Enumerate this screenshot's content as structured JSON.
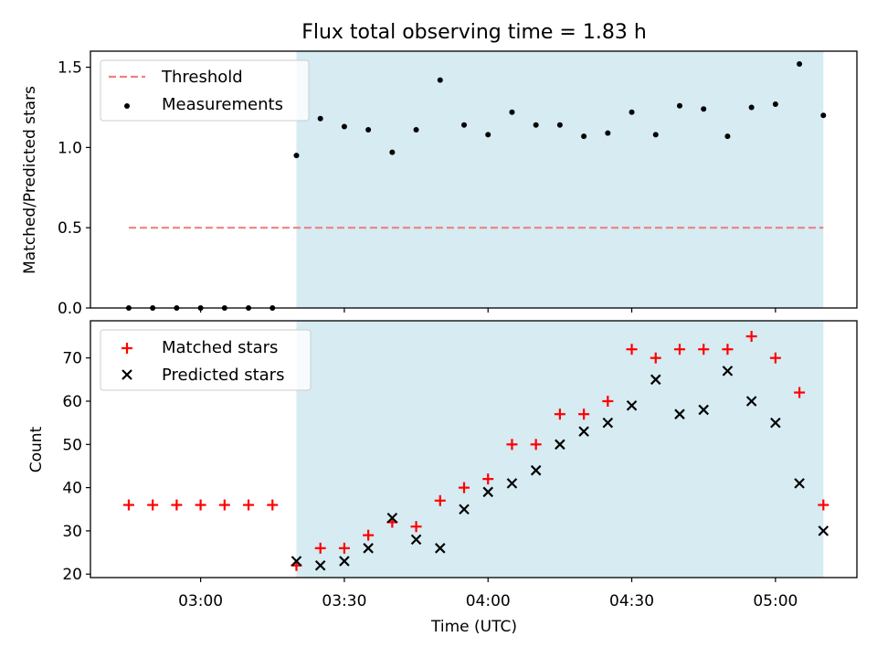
{
  "colors": {
    "shade": "#add8e6",
    "threshold": "#f08080",
    "measurement": "#000000",
    "matched": "#ff0000",
    "predicted": "#000000",
    "axis": "#000000"
  },
  "chart_data": [
    {
      "type": "scatter",
      "title": "Flux total observing time = 1.83 h",
      "xlabel": "",
      "ylabel": "Matched/Predicted stars",
      "xlim": [
        "02:37",
        "05:17"
      ],
      "ylim": [
        0,
        1.6
      ],
      "yticks": [
        0.0,
        0.5,
        1.0,
        1.5
      ],
      "ytick_labels": [
        "0.0",
        "0.5",
        "1.0",
        "1.5"
      ],
      "shaded_region": [
        "03:20",
        "05:10"
      ],
      "legend_position": "upper-left",
      "threshold": {
        "name": "Threshold",
        "value": 0.5,
        "x_range": [
          "02:45",
          "05:10"
        ],
        "style": "dashed"
      },
      "series": [
        {
          "name": "Measurements",
          "marker": "dot",
          "x": [
            "02:45",
            "02:50",
            "02:55",
            "03:00",
            "03:05",
            "03:10",
            "03:15",
            "03:20",
            "03:25",
            "03:30",
            "03:35",
            "03:40",
            "03:45",
            "03:50",
            "03:55",
            "04:00",
            "04:05",
            "04:10",
            "04:15",
            "04:20",
            "04:25",
            "04:30",
            "04:35",
            "04:40",
            "04:45",
            "04:50",
            "04:55",
            "05:00",
            "05:05",
            "05:10"
          ],
          "y": [
            0,
            0,
            0,
            0,
            0,
            0,
            0,
            0.95,
            1.18,
            1.13,
            1.11,
            0.97,
            1.11,
            1.42,
            1.14,
            1.08,
            1.22,
            1.14,
            1.14,
            1.07,
            1.09,
            1.22,
            1.08,
            1.26,
            1.24,
            1.07,
            1.25,
            1.27,
            1.52,
            1.2
          ]
        }
      ]
    },
    {
      "type": "scatter",
      "xlabel": "Time (UTC)",
      "ylabel": "Count",
      "xlim": [
        "02:37",
        "05:17"
      ],
      "ylim": [
        19.2,
        78.6
      ],
      "xticks": [
        "03:00",
        "03:30",
        "04:00",
        "04:30",
        "05:00"
      ],
      "yticks": [
        20,
        30,
        40,
        50,
        60,
        70
      ],
      "ytick_labels": [
        "20",
        "30",
        "40",
        "50",
        "60",
        "70"
      ],
      "shaded_region": [
        "03:20",
        "05:10"
      ],
      "legend_position": "upper-left",
      "series": [
        {
          "name": "Matched stars",
          "marker": "plus",
          "x": [
            "02:45",
            "02:50",
            "02:55",
            "03:00",
            "03:05",
            "03:10",
            "03:15",
            "03:20",
            "03:25",
            "03:30",
            "03:35",
            "03:40",
            "03:45",
            "03:50",
            "03:55",
            "04:00",
            "04:05",
            "04:10",
            "04:15",
            "04:20",
            "04:25",
            "04:30",
            "04:35",
            "04:40",
            "04:45",
            "04:50",
            "04:55",
            "05:00",
            "05:05",
            "05:10"
          ],
          "y": [
            36,
            36,
            36,
            36,
            36,
            36,
            36,
            22,
            26,
            26,
            29,
            32,
            31,
            37,
            40,
            42,
            50,
            50,
            57,
            57,
            60,
            72,
            70,
            72,
            72,
            72,
            75,
            70,
            62,
            36
          ]
        },
        {
          "name": "Predicted stars",
          "marker": "x",
          "x": [
            "03:20",
            "03:25",
            "03:30",
            "03:35",
            "03:40",
            "03:45",
            "03:50",
            "03:55",
            "04:00",
            "04:05",
            "04:10",
            "04:15",
            "04:20",
            "04:25",
            "04:30",
            "04:35",
            "04:40",
            "04:45",
            "04:50",
            "04:55",
            "05:00",
            "05:05",
            "05:10"
          ],
          "y": [
            23,
            22,
            23,
            26,
            33,
            28,
            26,
            35,
            39,
            41,
            44,
            50,
            53,
            55,
            59,
            65,
            57,
            58,
            67,
            60,
            55,
            41,
            30
          ]
        }
      ]
    }
  ]
}
